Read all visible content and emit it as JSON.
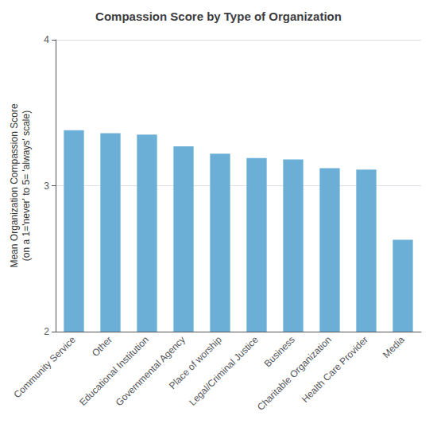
{
  "chart_data": {
    "type": "bar",
    "title": "Compassion Score by Type of Organization",
    "ylabel": "Mean Organization Compassion Score\n(on a 1='never' to 5= 'always' scale)",
    "categories": [
      "Community Service",
      "Other",
      "Educational Institution",
      "Governmental Agency",
      "Place of worship",
      "Legal/Criminal Justice",
      "Business",
      "Charitable Organization",
      "Health Care Provider",
      "Media"
    ],
    "values": [
      3.38,
      3.36,
      3.35,
      3.27,
      3.22,
      3.19,
      3.18,
      3.12,
      3.11,
      2.63
    ],
    "color": "#6BAED6",
    "ylim": [
      2,
      4
    ],
    "yticks": [
      2,
      3,
      4
    ],
    "grid": true
  }
}
